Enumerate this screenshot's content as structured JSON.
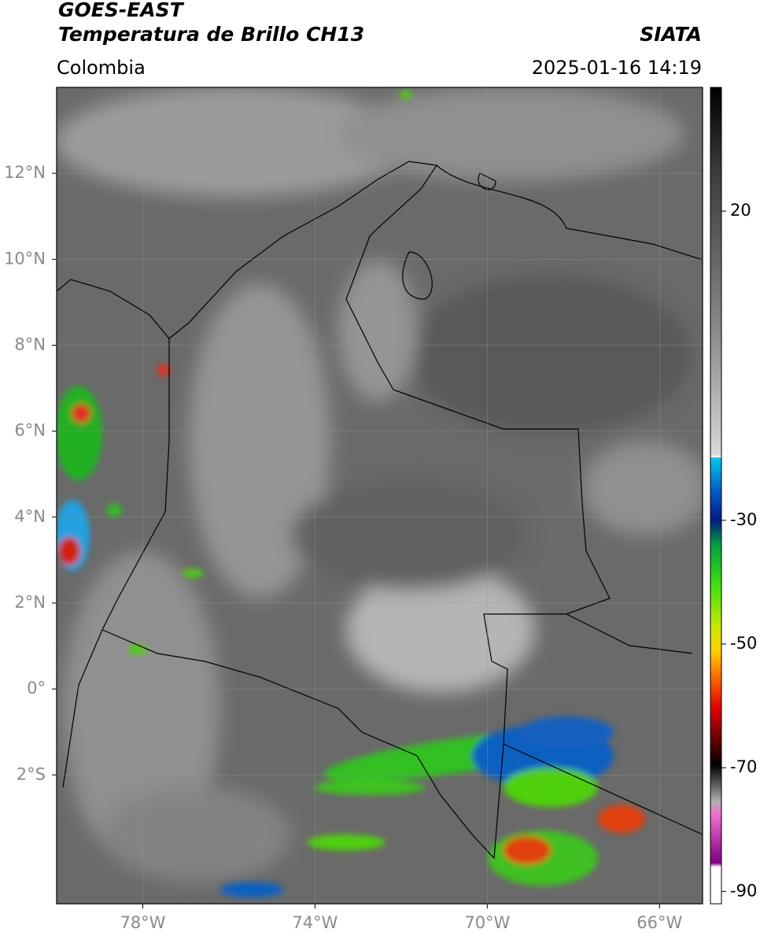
{
  "header": {
    "satellite": "GOES-EAST",
    "product": "Temperatura de Brillo CH13",
    "region": "Colombia",
    "source": "SIATA",
    "datetime": "2025-01-16 14:19"
  },
  "map": {
    "lonlim": [
      -80,
      -65
    ],
    "latlim": [
      -5,
      14
    ],
    "lonticks": [
      {
        "value": -78,
        "label": "78°W"
      },
      {
        "value": -74,
        "label": "74°W"
      },
      {
        "value": -70,
        "label": "70°W"
      },
      {
        "value": -66,
        "label": "66°W"
      }
    ],
    "latticks": [
      {
        "value": 12,
        "label": "12°N"
      },
      {
        "value": 10,
        "label": "10°N"
      },
      {
        "value": 8,
        "label": "8°N"
      },
      {
        "value": 6,
        "label": "6°N"
      },
      {
        "value": 4,
        "label": "4°N"
      },
      {
        "value": 2,
        "label": "2°N"
      },
      {
        "value": 0,
        "label": "0°"
      },
      {
        "value": -2,
        "label": "2°S"
      }
    ]
  },
  "colorbar": {
    "lim": [
      -92,
      40
    ],
    "ticks": [
      20,
      -30,
      -50,
      -70,
      -90
    ]
  }
}
